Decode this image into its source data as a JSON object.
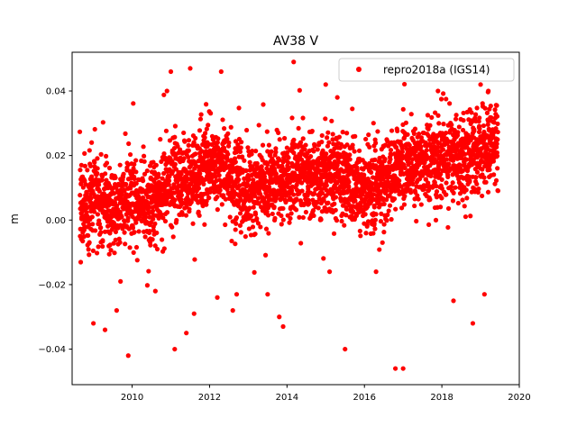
{
  "chart_data": {
    "type": "scatter",
    "title": "AV38 V",
    "xlabel": "",
    "ylabel": "m",
    "xlim": [
      2008.45,
      2020.0
    ],
    "ylim": [
      -0.051,
      0.052
    ],
    "xticks": [
      2010,
      2012,
      2014,
      2016,
      2018,
      2020
    ],
    "xtick_labels": [
      "2010",
      "2012",
      "2014",
      "2016",
      "2018",
      "2020"
    ],
    "yticks": [
      0.04,
      0.02,
      0.0,
      -0.02,
      -0.04
    ],
    "ytick_labels": [
      "0.04",
      "0.02",
      "0.00",
      "−0.02",
      "−0.04"
    ],
    "grid": false,
    "legend_position": "top-right",
    "series": [
      {
        "name": "repro2018a (IGS14)",
        "color": "#ff0000",
        "marker": "circle",
        "trend": {
          "x": [
            2008.65,
            2009.0,
            2009.5,
            2010.0,
            2010.5,
            2011.0,
            2011.5,
            2012.0,
            2012.5,
            2013.0,
            2013.5,
            2014.0,
            2014.5,
            2015.0,
            2015.5,
            2016.0,
            2016.5,
            2017.0,
            2017.5,
            2018.0,
            2018.5,
            2019.0,
            2019.45
          ],
          "y": [
            0.003,
            0.008,
            0.005,
            0.006,
            0.004,
            0.013,
            0.012,
            0.018,
            0.014,
            0.009,
            0.011,
            0.014,
            0.012,
            0.015,
            0.013,
            0.01,
            0.012,
            0.018,
            0.017,
            0.02,
            0.019,
            0.022,
            0.023
          ]
        },
        "scatter_sd": 0.0065,
        "points_drawn": 3400,
        "outliers": {
          "x": [
            2009.0,
            2009.3,
            2009.7,
            2009.9,
            2010.6,
            2011.1,
            2011.4,
            2011.6,
            2012.2,
            2012.6,
            2012.7,
            2013.5,
            2013.8,
            2013.9,
            2015.1,
            2015.5,
            2016.3,
            2016.8,
            2017.0,
            2018.3,
            2018.8,
            2019.1,
            2009.6,
            2010.9,
            2011.0,
            2011.5,
            2012.3,
            2015.0,
            2015.3,
            2017.9,
            2019.0,
            2019.2
          ],
          "y": [
            -0.032,
            -0.034,
            -0.019,
            -0.042,
            -0.022,
            -0.04,
            -0.035,
            -0.029,
            -0.024,
            -0.028,
            -0.023,
            -0.023,
            -0.03,
            -0.033,
            -0.016,
            -0.04,
            -0.016,
            -0.046,
            -0.046,
            -0.025,
            -0.032,
            -0.023,
            -0.028,
            0.04,
            0.046,
            0.047,
            0.046,
            0.042,
            0.038,
            0.04,
            0.042,
            0.04
          ]
        }
      }
    ]
  }
}
